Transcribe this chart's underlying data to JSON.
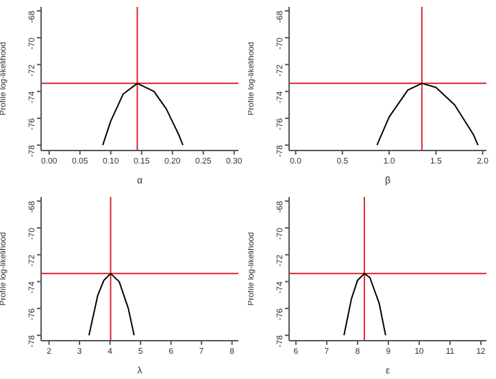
{
  "chart_data": [
    {
      "type": "line",
      "xlabel": "α",
      "ylabel": "Profile log-likelihood",
      "xlim": [
        -0.013,
        0.307
      ],
      "xticks": [
        {
          "value": 0,
          "label": "0.00"
        },
        0.05,
        {
          "value": 0.1,
          "label": "0.10"
        },
        0.15,
        {
          "value": 0.2,
          "label": "0.20"
        },
        0.25,
        {
          "value": 0.3,
          "label": "0.30"
        }
      ],
      "ylim": [
        -78.4,
        -67.7
      ],
      "yticks": [
        -78,
        -76,
        -74,
        -72,
        -70,
        -68
      ],
      "grid": false,
      "marker": "none",
      "series": [
        {
          "color": "#000000",
          "x": [
            0.087,
            0.1,
            0.12,
            0.143,
            0.17,
            0.19,
            0.21,
            0.217
          ],
          "values": [
            -78.0,
            -76.2,
            -74.2,
            -73.4,
            -74.0,
            -75.3,
            -77.2,
            -78.0
          ]
        }
      ],
      "ref_lines": [
        {
          "axis": "x",
          "value": 0.143,
          "color": "#e0202a"
        },
        {
          "axis": "y",
          "value": -73.4,
          "color": "#e0202a"
        }
      ]
    },
    {
      "type": "line",
      "xlabel": "β",
      "ylabel": "Profile log-likelihood",
      "xlim": [
        -0.07,
        2.04
      ],
      "xticks": [
        {
          "value": 0,
          "label": "0.0"
        },
        0.5,
        {
          "value": 1,
          "label": "1.0"
        },
        1.5,
        {
          "value": 2,
          "label": "2.0"
        }
      ],
      "ylim": [
        -78.4,
        -67.7
      ],
      "yticks": [
        -78,
        -76,
        -74,
        -72,
        -70,
        -68
      ],
      "grid": false,
      "marker": "none",
      "series": [
        {
          "color": "#000000",
          "x": [
            0.87,
            1.0,
            1.2,
            1.35,
            1.5,
            1.7,
            1.9,
            1.95
          ],
          "values": [
            -78.0,
            -75.9,
            -73.9,
            -73.4,
            -73.7,
            -75.0,
            -77.2,
            -78.0
          ]
        }
      ],
      "ref_lines": [
        {
          "axis": "x",
          "value": 1.35,
          "color": "#e0202a"
        },
        {
          "axis": "y",
          "value": -73.4,
          "color": "#e0202a"
        }
      ]
    },
    {
      "type": "line",
      "xlabel": "λ",
      "ylabel": "Profile log-likelihood",
      "xlim": [
        1.74,
        8.21
      ],
      "xticks": [
        2,
        3,
        4,
        5,
        6,
        7,
        8
      ],
      "ylim": [
        -78.4,
        -67.7
      ],
      "yticks": [
        -78,
        -76,
        -74,
        -72,
        -70,
        -68
      ],
      "grid": false,
      "marker": "none",
      "series": [
        {
          "color": "#000000",
          "x": [
            3.31,
            3.6,
            3.8,
            4.02,
            4.3,
            4.6,
            4.79
          ],
          "values": [
            -78.0,
            -75.0,
            -73.9,
            -73.4,
            -74.0,
            -76.0,
            -78.0
          ]
        }
      ],
      "ref_lines": [
        {
          "axis": "x",
          "value": 4.02,
          "color": "#e0202a"
        },
        {
          "axis": "y",
          "value": -73.4,
          "color": "#e0202a"
        }
      ]
    },
    {
      "type": "line",
      "xlabel": "ε",
      "ylabel": "Profile log-likelihood",
      "xlim": [
        5.78,
        12.18
      ],
      "xticks": [
        6,
        7,
        8,
        9,
        10,
        11,
        12
      ],
      "ylim": [
        -78.4,
        -67.7
      ],
      "yticks": [
        -78,
        -76,
        -74,
        -72,
        -70,
        -68
      ],
      "grid": false,
      "marker": "none",
      "series": [
        {
          "color": "#000000",
          "x": [
            7.56,
            7.8,
            8.0,
            8.22,
            8.4,
            8.7,
            8.91
          ],
          "values": [
            -78.0,
            -75.3,
            -73.9,
            -73.4,
            -73.7,
            -75.6,
            -78.0
          ]
        }
      ],
      "ref_lines": [
        {
          "axis": "x",
          "value": 8.22,
          "color": "#e0202a"
        },
        {
          "axis": "y",
          "value": -73.4,
          "color": "#e0202a"
        }
      ]
    }
  ]
}
